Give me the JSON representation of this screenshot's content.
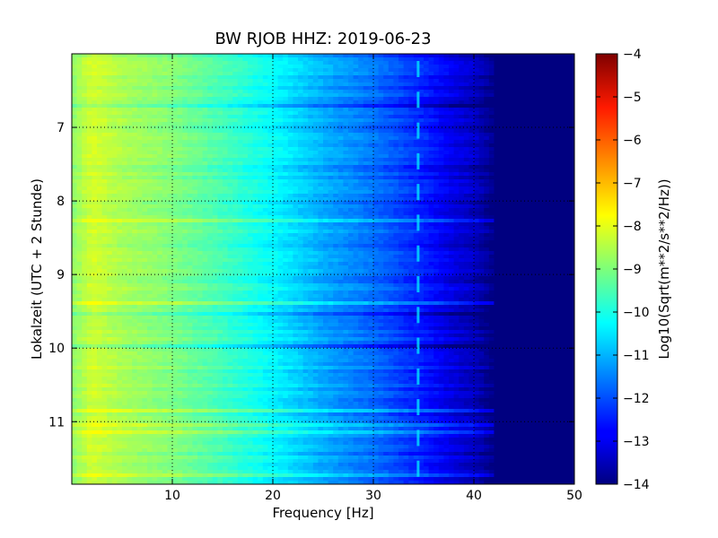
{
  "chart_data": {
    "type": "heatmap",
    "title": "BW RJOB HHZ: 2019-06-23",
    "xlabel": "Frequency [Hz]",
    "ylabel": "Lokalzeit (UTC + 2 Stunde)",
    "xlim": [
      0,
      50
    ],
    "ylim": [
      6.0,
      11.85
    ],
    "y_inverted": true,
    "x_ticks": [
      10,
      20,
      30,
      40,
      50
    ],
    "y_ticks": [
      7,
      8,
      9,
      10,
      11
    ],
    "grid": true,
    "colorbar": {
      "label": "Log10(Sqrt(m**2/s**2/Hz))",
      "range": [
        -14,
        -4
      ],
      "ticks": [
        -4,
        -5,
        -6,
        -7,
        -8,
        -9,
        -10,
        -11,
        -12,
        -13,
        -14
      ],
      "colormap": "jet"
    },
    "spectrum_profile": {
      "frequency_hz": [
        0,
        2,
        5,
        10,
        15,
        20,
        25,
        30,
        35,
        38,
        40,
        42,
        45,
        50
      ],
      "log10_amplitude": [
        -8.9,
        -8.2,
        -8.6,
        -9.0,
        -9.6,
        -10.3,
        -11.1,
        -11.7,
        -12.5,
        -13.1,
        -13.4,
        -14.0,
        -14.0,
        -14.0
      ]
    },
    "spectral_line_hz": 34.5
  }
}
